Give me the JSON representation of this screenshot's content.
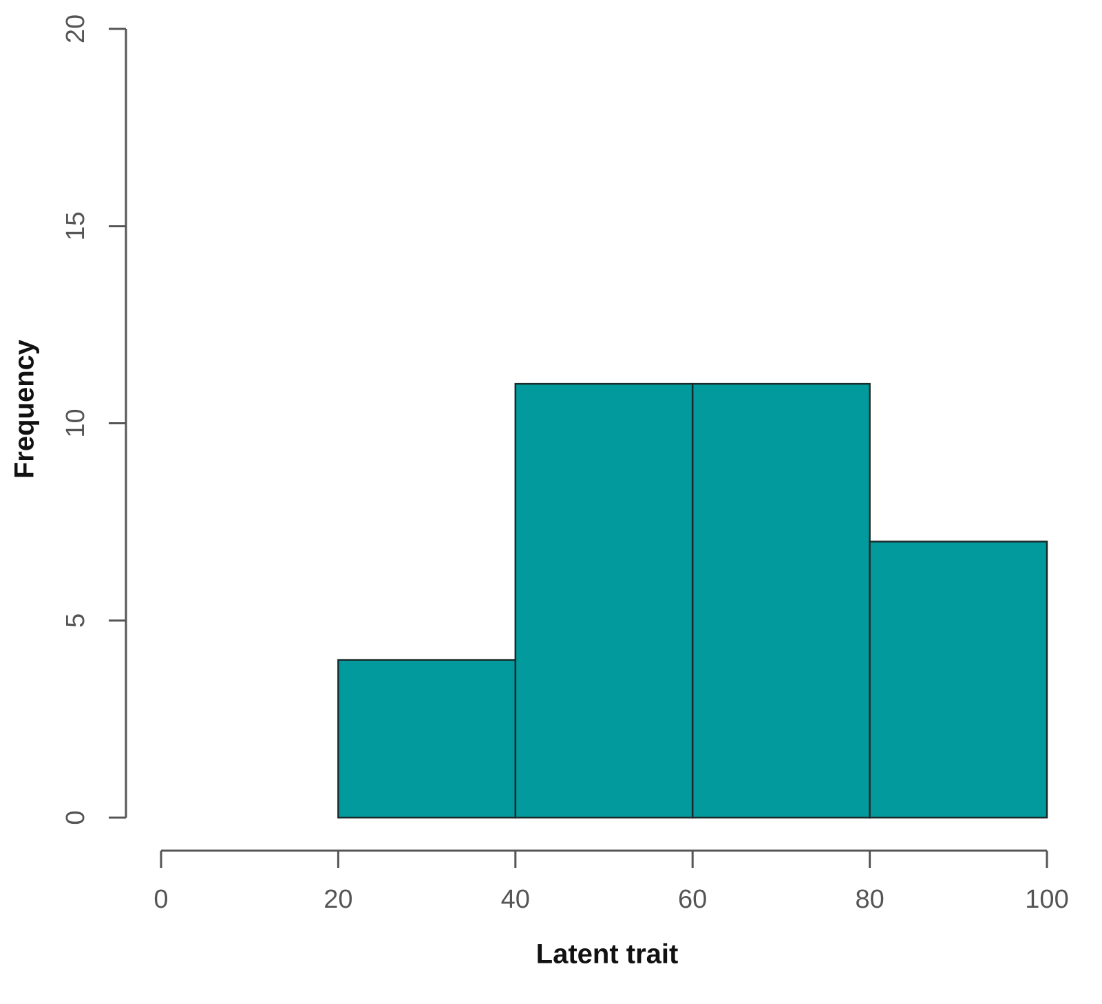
{
  "chart_data": {
    "type": "histogram",
    "xlabel": "Latent trait",
    "ylabel": "Frequency",
    "bins": [
      20,
      40,
      60,
      80,
      100
    ],
    "values": [
      4,
      11,
      11,
      7
    ],
    "color": "#029a9c",
    "xlim": [
      0,
      100
    ],
    "xticks": [
      0,
      20,
      40,
      60,
      80,
      100
    ],
    "ylim": [
      0,
      20
    ],
    "yticks": [
      0,
      5,
      10,
      15,
      20
    ]
  }
}
